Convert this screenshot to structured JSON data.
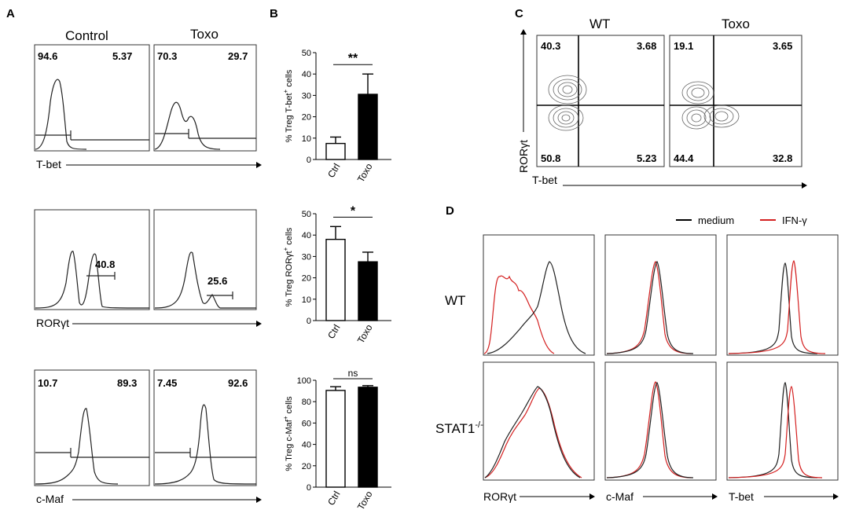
{
  "panels": {
    "A": {
      "letter": "A",
      "columns": [
        "Control",
        "Toxo"
      ],
      "rows": [
        {
          "axis_label": "T-bet",
          "control": {
            "left": "94.6",
            "right": "5.37"
          },
          "toxo": {
            "left": "70.3",
            "right": "29.7"
          }
        },
        {
          "axis_label": "RORγt",
          "control": {
            "gate": "40.8"
          },
          "toxo": {
            "gate": "25.6"
          }
        },
        {
          "axis_label": "c-Maf",
          "control": {
            "left": "10.7",
            "right": "89.3"
          },
          "toxo": {
            "left": "7.45",
            "right": "92.6"
          }
        }
      ]
    },
    "B": {
      "letter": "B"
    },
    "C": {
      "letter": "C",
      "columns": [
        "WT",
        "Toxo"
      ],
      "x_label": "T-bet",
      "y_label": "RORγt",
      "wt": {
        "ul": "40.3",
        "ur": "3.68",
        "ll": "50.8",
        "lr": "5.23"
      },
      "toxo": {
        "ul": "19.1",
        "ur": "3.65",
        "ll": "44.4",
        "lr": "32.8"
      }
    },
    "D": {
      "letter": "D",
      "rows": [
        "WT",
        "STAT1"
      ],
      "row_superscript": "-/-",
      "x_labels": [
        "RORγt",
        "c-Maf",
        "T-bet"
      ],
      "legend": [
        {
          "label": "medium",
          "color": "#000000"
        },
        {
          "label": "IFN-γ",
          "color": "#d42020"
        }
      ]
    }
  },
  "chart_data": [
    {
      "type": "bar",
      "title": "",
      "ylabel": "% Treg T-bet+ cells",
      "ylabel_main": "% Treg T-bet",
      "ylabel_sup": "+",
      "ylabel_tail": " cells",
      "categories": [
        "Ctrl",
        "Toxo"
      ],
      "values": [
        7.5,
        30.5
      ],
      "errors": [
        3,
        9.5
      ],
      "fills": [
        "#ffffff",
        "#000000"
      ],
      "ylim": [
        0,
        50
      ],
      "ticks": [
        0,
        10,
        20,
        30,
        40,
        50
      ],
      "significance": "**"
    },
    {
      "type": "bar",
      "title": "",
      "ylabel": "% Treg RORγt+ cells",
      "ylabel_main": "% Treg RORγt",
      "ylabel_sup": "+",
      "ylabel_tail": " cells",
      "categories": [
        "Ctrl",
        "Toxo"
      ],
      "values": [
        38,
        27.5
      ],
      "errors": [
        6,
        4.5
      ],
      "fills": [
        "#ffffff",
        "#000000"
      ],
      "ylim": [
        0,
        50
      ],
      "ticks": [
        0,
        10,
        20,
        30,
        40,
        50
      ],
      "significance": "*"
    },
    {
      "type": "bar",
      "title": "",
      "ylabel": "% Treg c-Maf+ cells",
      "ylabel_main": "% Treg c-Maf",
      "ylabel_sup": "+",
      "ylabel_tail": " cells",
      "categories": [
        "Ctrl",
        "Toxo"
      ],
      "values": [
        90.5,
        93.5
      ],
      "errors": [
        3.5,
        1.5
      ],
      "fills": [
        "#ffffff",
        "#000000"
      ],
      "ylim": [
        0,
        100
      ],
      "ticks": [
        0,
        20,
        40,
        60,
        80,
        100
      ],
      "significance": "ns"
    }
  ]
}
